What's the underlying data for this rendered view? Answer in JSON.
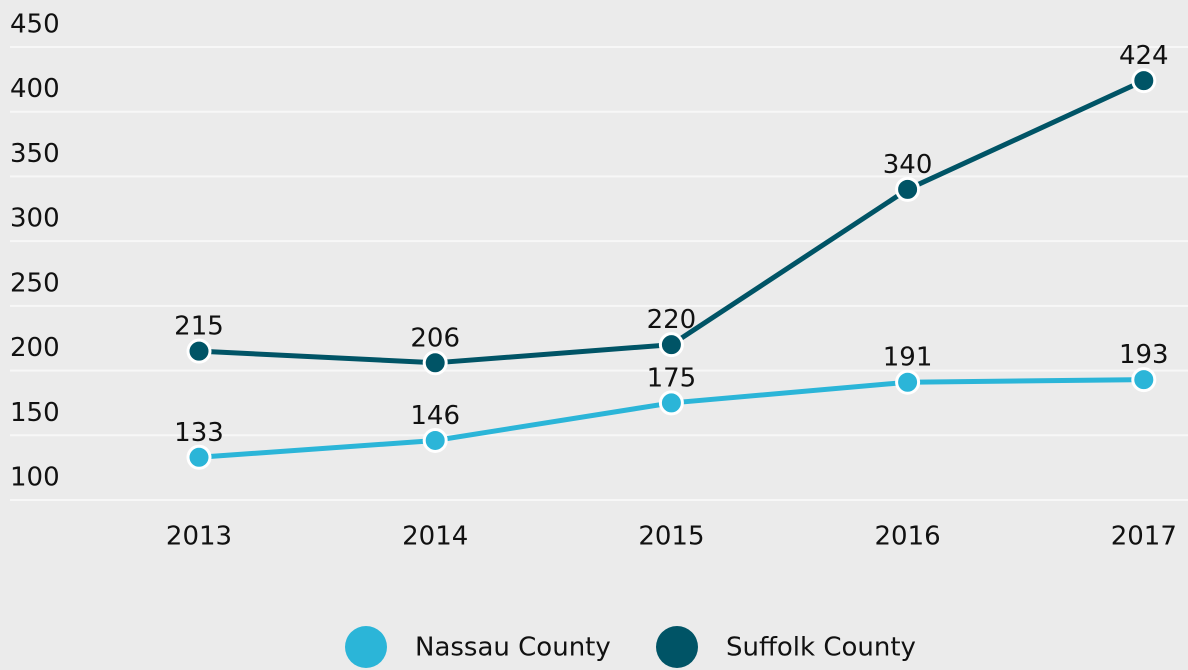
{
  "chart_data": {
    "type": "line",
    "categories": [
      "2013",
      "2014",
      "2015",
      "2016",
      "2017"
    ],
    "series": [
      {
        "name": "Nassau County",
        "color": "#2bb5d8",
        "values": [
          133,
          146,
          175,
          191,
          193
        ]
      },
      {
        "name": "Suffolk County",
        "color": "#005466",
        "values": [
          215,
          206,
          220,
          340,
          424
        ]
      }
    ],
    "ylim": [
      100,
      450
    ],
    "yticks": [
      100,
      150,
      200,
      250,
      300,
      350,
      400,
      450
    ],
    "grid": true,
    "legend": "bottom"
  }
}
